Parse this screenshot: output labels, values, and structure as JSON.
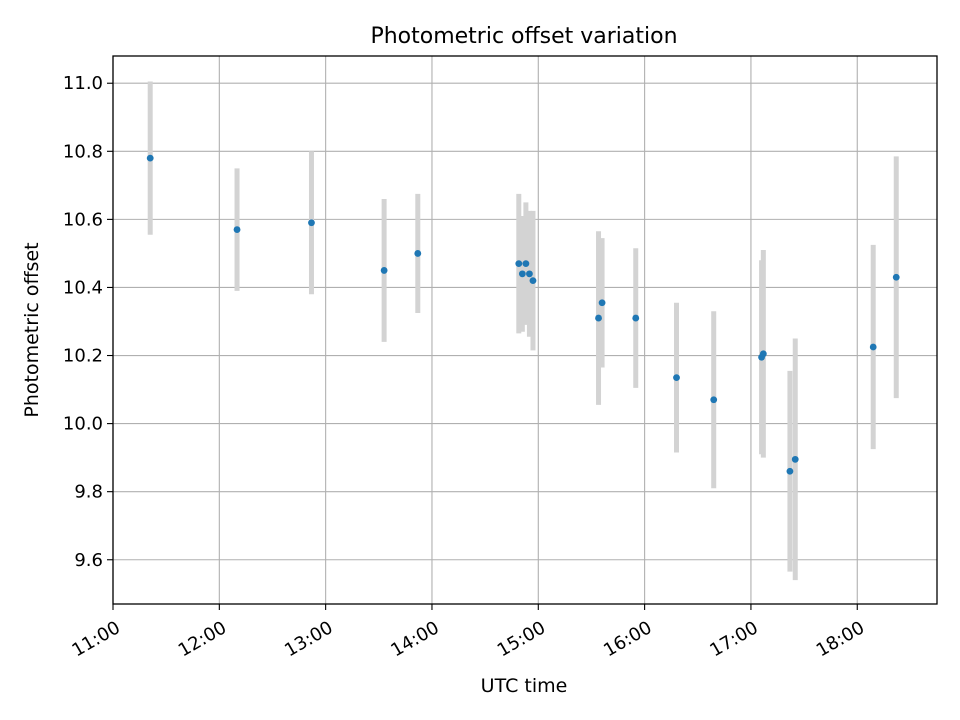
{
  "chart_data": {
    "type": "scatter",
    "title": "Photometric offset variation",
    "xlabel": "UTC time",
    "ylabel": "Photometric offset",
    "x_ticks": [
      "11:00",
      "12:00",
      "13:00",
      "14:00",
      "15:00",
      "16:00",
      "17:00",
      "18:00"
    ],
    "y_ticks": [
      "9.6",
      "9.8",
      "10.0",
      "10.2",
      "10.4",
      "10.6",
      "10.8",
      "11.0"
    ],
    "xlim": [
      "11:00",
      "18:45"
    ],
    "ylim": [
      9.47,
      11.08
    ],
    "grid": true,
    "colors": {
      "points": "#1f77b4",
      "errorbars": "#d3d3d3",
      "grid": "#b0b0b0"
    },
    "points": [
      {
        "x": "11:21",
        "y": 10.78,
        "err": 0.225
      },
      {
        "x": "12:10",
        "y": 10.57,
        "err": 0.18
      },
      {
        "x": "12:52",
        "y": 10.59,
        "err": 0.21
      },
      {
        "x": "13:33",
        "y": 10.45,
        "err": 0.21
      },
      {
        "x": "13:52",
        "y": 10.5,
        "err": 0.175
      },
      {
        "x": "14:49",
        "y": 10.47,
        "err": 0.205
      },
      {
        "x": "14:51",
        "y": 10.44,
        "err": 0.17
      },
      {
        "x": "14:53",
        "y": 10.47,
        "err": 0.18
      },
      {
        "x": "14:55",
        "y": 10.44,
        "err": 0.185
      },
      {
        "x": "14:57",
        "y": 10.42,
        "err": 0.205
      },
      {
        "x": "15:34",
        "y": 10.31,
        "err": 0.255
      },
      {
        "x": "15:36",
        "y": 10.355,
        "err": 0.19
      },
      {
        "x": "15:55",
        "y": 10.31,
        "err": 0.205
      },
      {
        "x": "16:18",
        "y": 10.135,
        "err": 0.22
      },
      {
        "x": "16:39",
        "y": 10.07,
        "err": 0.26
      },
      {
        "x": "17:06",
        "y": 10.195,
        "err": 0.285
      },
      {
        "x": "17:07",
        "y": 10.205,
        "err": 0.305
      },
      {
        "x": "17:22",
        "y": 9.86,
        "err": 0.295
      },
      {
        "x": "17:25",
        "y": 9.895,
        "err": 0.355
      },
      {
        "x": "18:09",
        "y": 10.225,
        "err": 0.3
      },
      {
        "x": "18:22",
        "y": 10.43,
        "err": 0.355
      }
    ]
  }
}
